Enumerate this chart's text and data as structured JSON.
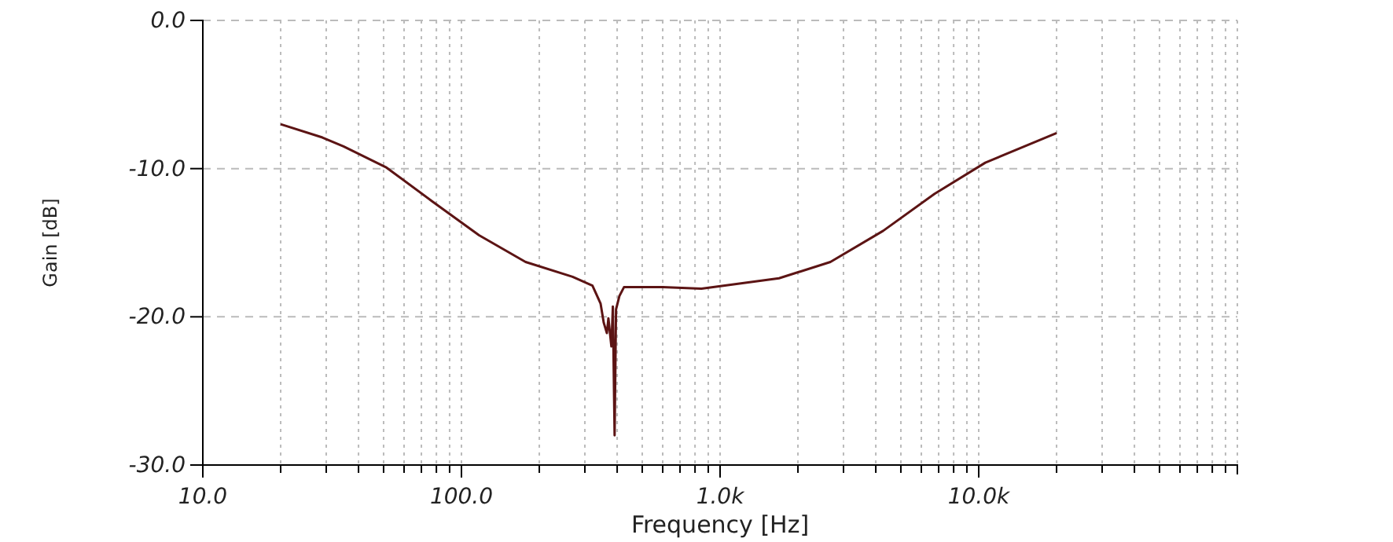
{
  "chart_data": {
    "type": "line",
    "xlabel": "Frequency [Hz]",
    "ylabel": "Gain [dB]",
    "log": "x",
    "grid": true,
    "line_style": "solid",
    "marker": "none",
    "xlim": [
      10,
      100000
    ],
    "ylim": [
      -30,
      0
    ],
    "xticks": [
      {
        "value": 10,
        "label": "10.0"
      },
      {
        "value": 20,
        "label": null
      },
      {
        "value": 30,
        "label": null
      },
      {
        "value": 40,
        "label": null
      },
      {
        "value": 50,
        "label": null
      },
      {
        "value": 60,
        "label": null
      },
      {
        "value": 70,
        "label": null
      },
      {
        "value": 80,
        "label": null
      },
      {
        "value": 90,
        "label": null
      },
      {
        "value": 100,
        "label": "100.0"
      },
      {
        "value": 200,
        "label": null
      },
      {
        "value": 300,
        "label": null
      },
      {
        "value": 400,
        "label": null
      },
      {
        "value": 500,
        "label": null
      },
      {
        "value": 600,
        "label": null
      },
      {
        "value": 700,
        "label": null
      },
      {
        "value": 800,
        "label": null
      },
      {
        "value": 900,
        "label": null
      },
      {
        "value": 1000,
        "label": "1.0k"
      },
      {
        "value": 2000,
        "label": null
      },
      {
        "value": 3000,
        "label": null
      },
      {
        "value": 4000,
        "label": null
      },
      {
        "value": 5000,
        "label": null
      },
      {
        "value": 6000,
        "label": null
      },
      {
        "value": 7000,
        "label": null
      },
      {
        "value": 8000,
        "label": null
      },
      {
        "value": 9000,
        "label": null
      },
      {
        "value": 10000,
        "label": "10.0k"
      },
      {
        "value": 20000,
        "label": null
      },
      {
        "value": 30000,
        "label": null
      },
      {
        "value": 40000,
        "label": null
      },
      {
        "value": 50000,
        "label": null
      },
      {
        "value": 60000,
        "label": null
      },
      {
        "value": 70000,
        "label": null
      },
      {
        "value": 80000,
        "label": null
      },
      {
        "value": 90000,
        "label": null
      },
      {
        "value": 100000,
        "label": null
      }
    ],
    "yticks": [
      {
        "value": -30,
        "label": "-30.0"
      },
      {
        "value": -20,
        "label": "-20.0"
      },
      {
        "value": -10,
        "label": "-10.0"
      },
      {
        "value": 0,
        "label": "0.0"
      }
    ],
    "series": [
      {
        "color": "#5c1414",
        "x": [
          20,
          29,
          35,
          51,
          77,
          117,
          177,
          269,
          321,
          345,
          355,
          365,
          370,
          380,
          385,
          391,
          396,
          408,
          425,
          600,
          847,
          1690,
          2670,
          4270,
          6750,
          10600,
          20000
        ],
        "values": [
          -7.0,
          -7.9,
          -8.5,
          -9.9,
          -12.2,
          -14.5,
          -16.3,
          -17.3,
          -17.9,
          -19.1,
          -20.4,
          -21.1,
          -20.1,
          -22.0,
          -19.3,
          -28.0,
          -19.5,
          -18.6,
          -18.0,
          -18.0,
          -18.1,
          -17.4,
          -16.3,
          -14.2,
          -11.7,
          -9.6,
          -7.6
        ]
      }
    ]
  }
}
